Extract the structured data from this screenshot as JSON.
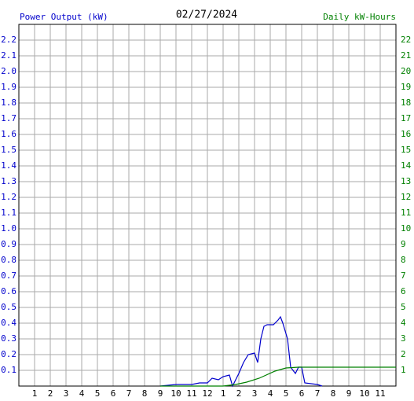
{
  "chart_data": {
    "type": "line",
    "title": "02/27/2024",
    "ylabel": "Power Output (kW)",
    "y2label": "Daily kW-Hours",
    "ylabel_color": "#0000cc",
    "y2label_color": "#008000",
    "xlim": [
      0,
      24
    ],
    "ylim": [
      0,
      2.3
    ],
    "y2lim": [
      0,
      23
    ],
    "grid": true,
    "xticks": [
      1,
      2,
      3,
      4,
      5,
      6,
      7,
      8,
      9,
      10,
      11,
      12,
      {
        "value": 13,
        "label": "1"
      },
      {
        "value": 14,
        "label": "2"
      },
      {
        "value": 15,
        "label": "3"
      },
      {
        "value": 16,
        "label": "4"
      },
      {
        "value": 17,
        "label": "5"
      },
      {
        "value": 18,
        "label": "6"
      },
      {
        "value": 19,
        "label": "7"
      },
      {
        "value": 20,
        "label": "8"
      },
      {
        "value": 21,
        "label": "9"
      },
      {
        "value": 22,
        "label": "10"
      },
      {
        "value": 23,
        "label": "11"
      }
    ],
    "yticks": [
      0.1,
      0.2,
      0.3,
      0.4,
      0.5,
      0.6,
      0.7,
      0.8,
      0.9,
      {
        "value": 1,
        "label": "1.0"
      },
      1.1,
      1.2,
      1.3,
      1.4,
      1.5,
      1.6,
      1.7,
      1.8,
      1.9,
      {
        "value": 2,
        "label": "2.0"
      },
      2.1,
      2.2
    ],
    "y2ticks": [
      1,
      2,
      3,
      4,
      5,
      6,
      7,
      8,
      9,
      10,
      11,
      12,
      13,
      14,
      15,
      16,
      17,
      18,
      19,
      20,
      21,
      22
    ],
    "series": [
      {
        "name": "Power Output (kW)",
        "color": "#0000cc",
        "x": [
          9,
          10,
          11,
          11.5,
          12,
          12.3,
          12.7,
          13,
          13.4,
          13.6,
          14,
          14.3,
          14.6,
          15,
          15.2,
          15.4,
          15.6,
          15.8,
          16.2,
          16.5,
          16.65,
          16.8,
          17.1,
          17.3,
          17.6,
          17.8,
          18,
          18.2,
          19,
          19.3
        ],
        "values": [
          0,
          0.01,
          0.01,
          0.02,
          0.02,
          0.05,
          0.04,
          0.06,
          0.07,
          0.0,
          0.08,
          0.15,
          0.2,
          0.21,
          0.15,
          0.3,
          0.38,
          0.39,
          0.39,
          0.42,
          0.44,
          0.4,
          0.3,
          0.12,
          0.08,
          0.12,
          0.12,
          0.02,
          0.01,
          0
        ]
      },
      {
        "name": "Daily kW-Hours",
        "color": "#008000",
        "axis": "y2",
        "x": [
          9,
          13,
          13.8,
          14.5,
          15.3,
          16.3,
          17,
          17.8,
          24
        ],
        "values": [
          0,
          0,
          0.1,
          0.25,
          0.5,
          0.95,
          1.15,
          1.2,
          1.2
        ]
      }
    ]
  }
}
